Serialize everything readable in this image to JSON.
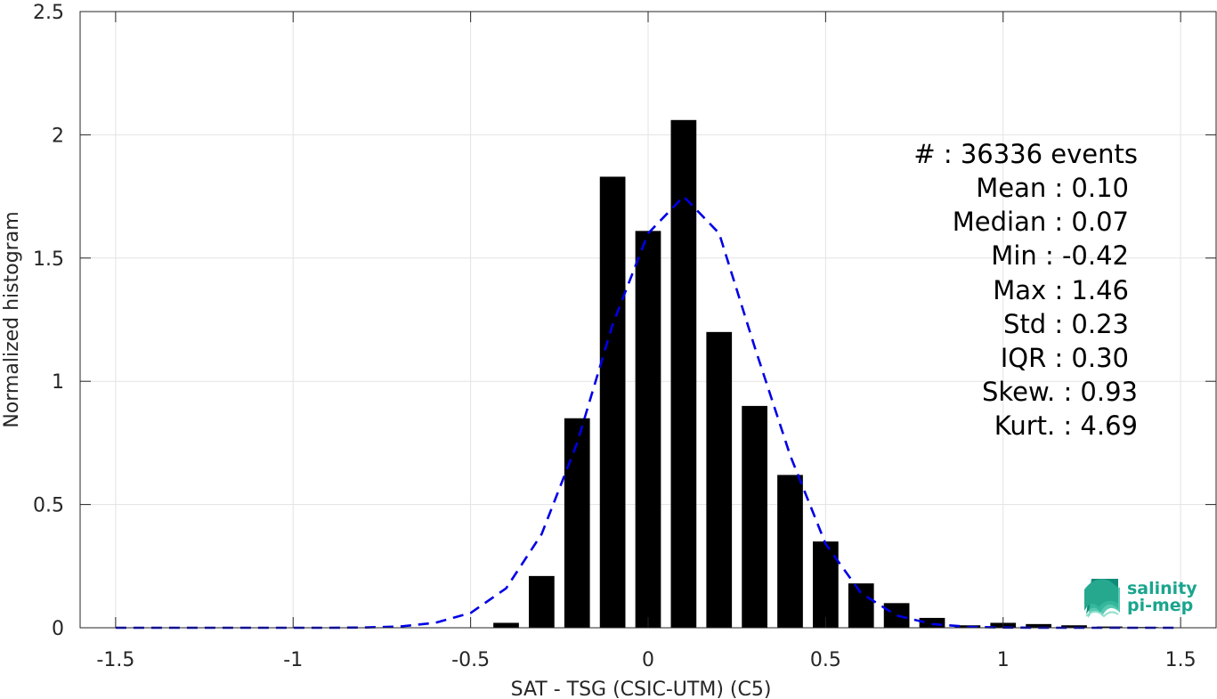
{
  "chart_data": {
    "type": "bar",
    "xlabel": "SAT - TSG (CSIC-UTM) (C5)",
    "ylabel": "Normalized histogram",
    "xlim": [
      -1.6,
      1.6
    ],
    "ylim": [
      0,
      2.5
    ],
    "x_ticks": [
      -1.5,
      -1,
      -0.5,
      0,
      0.5,
      1,
      1.5
    ],
    "x_tick_labels": [
      "-1.5",
      "-1",
      "-0.5",
      "0",
      "0.5",
      "1",
      "1.5"
    ],
    "y_ticks": [
      0,
      0.5,
      1,
      1.5,
      2,
      2.5
    ],
    "y_tick_labels": [
      "0",
      "0.5",
      "1",
      "1.5",
      "2",
      "2.5"
    ],
    "grid": true,
    "bar_color": "#000000",
    "curve_color": "#0000e6",
    "bar_width": 0.072,
    "bins": {
      "centers": [
        -0.4,
        -0.3,
        -0.2,
        -0.1,
        0.0,
        0.1,
        0.2,
        0.3,
        0.4,
        0.5,
        0.6,
        0.7,
        0.8,
        0.9,
        1.0,
        1.1,
        1.2,
        1.3,
        1.4
      ],
      "values": [
        0.02,
        0.21,
        0.85,
        1.83,
        1.61,
        2.06,
        1.2,
        0.9,
        0.62,
        0.35,
        0.18,
        0.1,
        0.04,
        0.01,
        0.02,
        0.015,
        0.01,
        0.005,
        0.003
      ]
    },
    "fit_curve": {
      "x": [
        -1.5,
        -1.4,
        -1.3,
        -1.2,
        -1.1,
        -1.0,
        -0.9,
        -0.8,
        -0.7,
        -0.6,
        -0.5,
        -0.4,
        -0.3,
        -0.2,
        -0.1,
        0.0,
        0.1,
        0.2,
        0.3,
        0.4,
        0.5,
        0.6,
        0.7,
        0.8,
        0.9,
        1.0,
        1.1,
        1.2,
        1.3,
        1.4,
        1.5
      ],
      "y": [
        0,
        0,
        0,
        0,
        0,
        0,
        0,
        0.001,
        0.005,
        0.02,
        0.06,
        0.16,
        0.38,
        0.75,
        1.23,
        1.6,
        1.75,
        1.6,
        1.14,
        0.7,
        0.34,
        0.14,
        0.05,
        0.015,
        0.004,
        0.001,
        0,
        0,
        0,
        0,
        0
      ]
    },
    "stats": [
      "#  : 36336 events",
      "Mean : 0.10",
      "Median : 0.07",
      "Min : -0.42",
      "Max : 1.46",
      "Std : 0.23",
      "IQR : 0.30",
      "Skew. : 0.93",
      "Kurt. : 4.69"
    ]
  },
  "logo": {
    "line1": "salinity",
    "line2": "pi-mep",
    "color": "#1aa58e"
  }
}
